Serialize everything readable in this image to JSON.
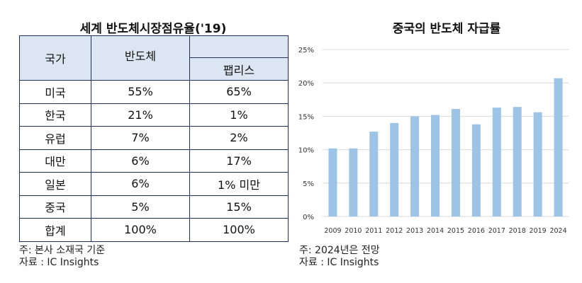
{
  "table": {
    "title": "세계  반도체시장점유율('19)",
    "headers": {
      "country": "국가",
      "semiconductor": "반도체",
      "fabless": "팹리스"
    },
    "rows": [
      {
        "country": "미국",
        "semi": "55%",
        "fabless": "65%"
      },
      {
        "country": "한국",
        "semi": "21%",
        "fabless": "1%"
      },
      {
        "country": "유럽",
        "semi": "7%",
        "fabless": "2%"
      },
      {
        "country": "대만",
        "semi": "6%",
        "fabless": "17%"
      },
      {
        "country": "일본",
        "semi": "6%",
        "fabless": "1% 미만"
      },
      {
        "country": "중국",
        "semi": "5%",
        "fabless": "15%"
      },
      {
        "country": "합계",
        "semi": "100%",
        "fabless": "100%"
      }
    ],
    "note": "주: 본사 소재국 기준",
    "source": "자료 : IC Insights",
    "header_color": "#dce6f2",
    "border_color": "#1f2f5a"
  },
  "chart_data": {
    "type": "bar",
    "title": "중국의 반도체 자급률",
    "categories": [
      "2009",
      "2010",
      "2011",
      "2012",
      "2013",
      "2014",
      "2015",
      "2016",
      "2017",
      "2018",
      "2019",
      "2024"
    ],
    "values": [
      10.2,
      10.2,
      12.7,
      14.0,
      15.0,
      15.2,
      16.1,
      13.8,
      16.3,
      16.4,
      15.6,
      20.7
    ],
    "ylim": [
      0,
      25
    ],
    "yticks": [
      "0%",
      "5%",
      "10%",
      "15%",
      "20%",
      "25%"
    ],
    "grid": true,
    "bar_color": "#9dc3e6",
    "note": "주: 2024년은 전망",
    "source": "자료 : IC Insights"
  }
}
